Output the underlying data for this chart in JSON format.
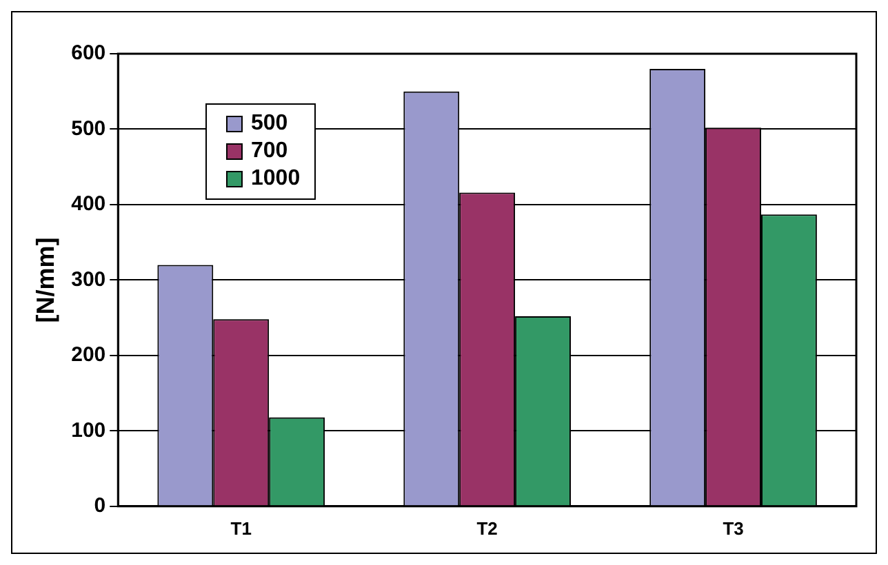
{
  "chart_data": {
    "type": "bar",
    "ylabel": "[N/mm]",
    "categories": [
      "T1",
      "T2",
      "T3"
    ],
    "series": [
      {
        "name": "500",
        "color": "#9999cc",
        "values": [
          320,
          550,
          580
        ]
      },
      {
        "name": "700",
        "color": "#993366",
        "values": [
          248,
          416,
          502
        ]
      },
      {
        "name": "1000",
        "color": "#339966",
        "values": [
          118,
          252,
          387
        ]
      }
    ],
    "ylim": [
      0,
      600
    ],
    "yticks": [
      0,
      100,
      200,
      300,
      400,
      500,
      600
    ],
    "grid": "y",
    "legend": "top left"
  }
}
